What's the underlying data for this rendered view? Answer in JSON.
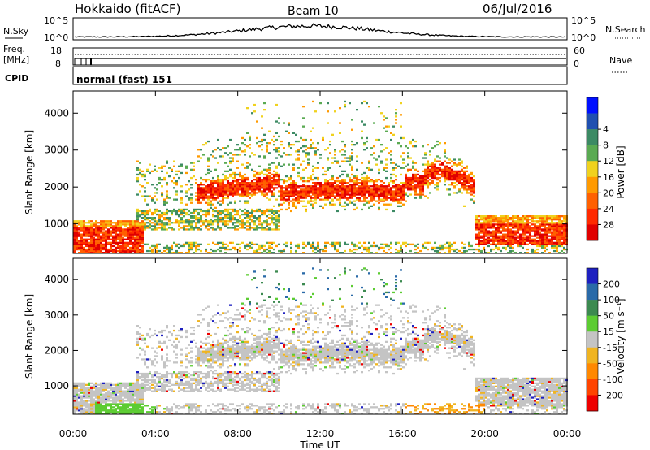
{
  "header": {
    "station": "Hokkaido (fitACF)",
    "beam": "Beam 10",
    "date": "06/Jul/2016"
  },
  "top_panels": {
    "nsky_label": "N.Sky",
    "nsky_ticks": [
      "10^5",
      "10^0"
    ],
    "nsearch_label": "N.Search",
    "nsearch_ticks": [
      "10^5",
      "10^0"
    ],
    "freq_label_1": "Freq.",
    "freq_label_2": "[MHz]",
    "freq_ticks": [
      "18",
      "8"
    ],
    "nave_label": "Nave",
    "nave_ticks": [
      "60",
      "0"
    ],
    "cpid_label": "CPID",
    "mode_text": "normal (fast) 151"
  },
  "chart_data": [
    {
      "type": "heatmap",
      "name": "power",
      "ylabel": "Slant Range [km]",
      "yticks": [
        1000,
        2000,
        3000,
        4000
      ],
      "ylim": [
        200,
        4600
      ],
      "xlim": [
        0,
        24
      ],
      "colorbar_label": "Power [dB]",
      "colorbar_ticks": [
        4,
        8,
        12,
        16,
        20,
        24,
        28
      ],
      "colors": [
        "#0010ff",
        "#2050b0",
        "#3c8a64",
        "#5aaa52",
        "#f0d21e",
        "#ff9a00",
        "#ff6000",
        "#ff2a00",
        "#e00000"
      ]
    },
    {
      "type": "heatmap",
      "name": "velocity",
      "ylabel": "Slant Range [km]",
      "yticks": [
        1000,
        2000,
        3000,
        4000
      ],
      "ylim": [
        200,
        4600
      ],
      "xlim": [
        0,
        24
      ],
      "xlabel": "Time UT",
      "xticks": [
        "00:00",
        "04:00",
        "08:00",
        "12:00",
        "16:00",
        "20:00",
        "00:00"
      ],
      "colorbar_label": "Velocity [m s⁻¹]",
      "colorbar_ticks": [
        "200",
        "100",
        "50",
        "15",
        "-15",
        "-50",
        "-100",
        "-200"
      ],
      "colors": [
        "#1e20c0",
        "#2a6aa8",
        "#3c8a50",
        "#5ccc32",
        "#c4c4c4",
        "#f0b420",
        "#ff8800",
        "#ff4400",
        "#ee0000"
      ]
    }
  ]
}
